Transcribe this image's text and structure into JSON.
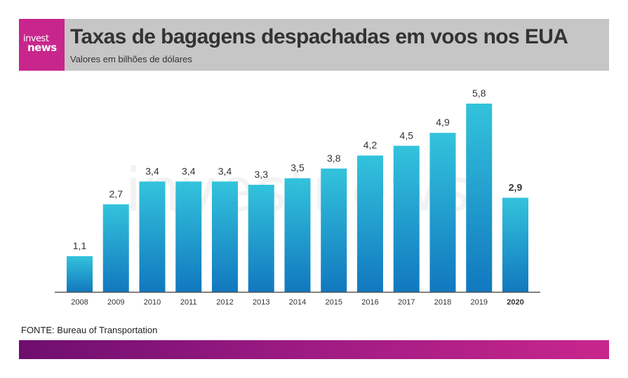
{
  "header": {
    "logo_top": "invest",
    "logo_bottom": "news",
    "title": "Taxas de bagagens despachadas em voos nos EUA",
    "subtitle": "Valores em bilhões de dólares"
  },
  "watermark": "investnews",
  "source": "FONTE: Bureau of Transportation",
  "colors": {
    "bar_top": "#33c3dc",
    "bar_bottom": "#1178bf",
    "brand": "#c8268c",
    "header_bg": "#c6c6c6"
  },
  "chart_data": {
    "type": "bar",
    "title": "Taxas de bagagens despachadas em voos nos EUA",
    "subtitle": "Valores em bilhões de dólares",
    "xlabel": "",
    "ylabel": "",
    "categories": [
      "2008",
      "2009",
      "2010",
      "2011",
      "2012",
      "2013",
      "2014",
      "2015",
      "2016",
      "2017",
      "2018",
      "2019",
      "2020"
    ],
    "values": [
      1.1,
      2.7,
      3.4,
      3.4,
      3.4,
      3.3,
      3.5,
      3.8,
      4.2,
      4.5,
      4.9,
      5.8,
      2.9
    ],
    "value_labels": [
      "1,1",
      "2,7",
      "3,4",
      "3,4",
      "3,4",
      "3,3",
      "3,5",
      "3,8",
      "4,2",
      "4,5",
      "4,9",
      "5,8",
      "2,9"
    ],
    "highlight_category": "2020",
    "ylim": [
      0,
      5.8
    ],
    "grid": false,
    "legend": "none"
  }
}
